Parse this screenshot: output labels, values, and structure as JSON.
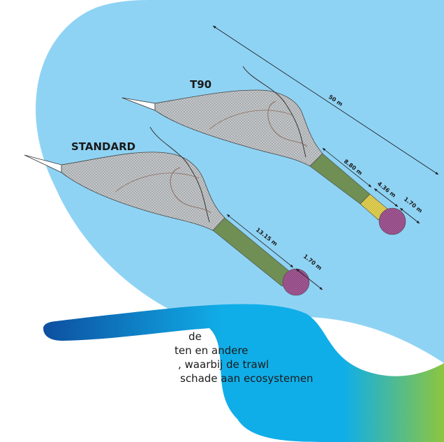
{
  "labels": {
    "t90": "T90",
    "standard": "STANDARD"
  },
  "dimensions": {
    "t90_total": "50 m",
    "t90_extension": "8.80 m",
    "t90_t90_section": "4.36 m",
    "t90_codend": "1.70 m",
    "standard_extension": "13.15 m",
    "standard_codend": "1.70 m"
  },
  "paragraph": {
    "line1": "de",
    "line2": "ten en andere",
    "line3": ", waarbij de trawl",
    "line4": "schade aan ecosystemen"
  },
  "colors": {
    "water": "#8fd3f4",
    "net_mesh": "#b9bcbe",
    "extension": "#6f8f55",
    "t90_section": "#e6d55a",
    "codend": "#a05a93",
    "band_start": "#0d4fa0",
    "band_mid": "#10aee8",
    "band_end": "#8cc63f"
  }
}
